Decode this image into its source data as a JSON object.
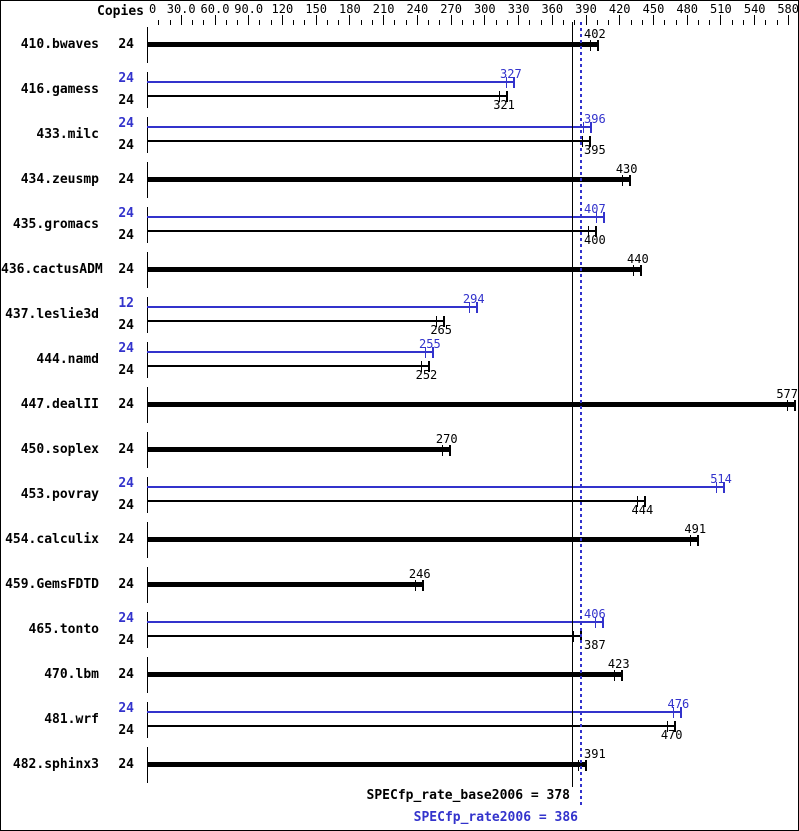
{
  "header": {
    "copies_label": "Copies"
  },
  "footer": {
    "base_label": "SPECfp_rate_base2006 = 378",
    "peak_label": "SPECfp_rate2006 = 386"
  },
  "colors": {
    "peak": "#3333cc",
    "base": "#000000"
  },
  "chart_data": {
    "type": "bar",
    "orientation": "horizontal",
    "title": "SPECfp_rate2006 result bar chart",
    "xlabel": "",
    "ylabel": "Copies",
    "axis": {
      "min": 0,
      "max": 580,
      "minor_step": 10,
      "major_step": 30,
      "tick_labels": [
        "0",
        "30.0",
        "60.0",
        "90.0",
        "120",
        "150",
        "180",
        "210",
        "240",
        "270",
        "300",
        "330",
        "360",
        "390",
        "420",
        "450",
        "480",
        "510",
        "540",
        "580"
      ]
    },
    "reference_lines": [
      {
        "name": "SPECfp_rate_base2006",
        "value": 378,
        "style": "solid",
        "color": "#000000"
      },
      {
        "name": "SPECfp_rate2006",
        "value": 386,
        "style": "dotted",
        "color": "#3333cc"
      }
    ],
    "benchmarks": [
      {
        "name": "410.bwaves",
        "bars": [
          {
            "kind": "base",
            "copies": 24,
            "value": 402,
            "thick": true
          }
        ]
      },
      {
        "name": "416.gamess",
        "bars": [
          {
            "kind": "peak",
            "copies": 24,
            "value": 327
          },
          {
            "kind": "base",
            "copies": 24,
            "value": 321
          }
        ]
      },
      {
        "name": "433.milc",
        "bars": [
          {
            "kind": "peak",
            "copies": 24,
            "value": 396
          },
          {
            "kind": "base",
            "copies": 24,
            "value": 395
          }
        ]
      },
      {
        "name": "434.zeusmp",
        "bars": [
          {
            "kind": "base",
            "copies": 24,
            "value": 430,
            "thick": true
          }
        ]
      },
      {
        "name": "435.gromacs",
        "bars": [
          {
            "kind": "peak",
            "copies": 24,
            "value": 407
          },
          {
            "kind": "base",
            "copies": 24,
            "value": 400
          }
        ]
      },
      {
        "name": "436.cactusADM",
        "bars": [
          {
            "kind": "base",
            "copies": 24,
            "value": 440,
            "thick": true
          }
        ]
      },
      {
        "name": "437.leslie3d",
        "bars": [
          {
            "kind": "peak",
            "copies": 12,
            "value": 294
          },
          {
            "kind": "base",
            "copies": 24,
            "value": 265
          }
        ]
      },
      {
        "name": "444.namd",
        "bars": [
          {
            "kind": "peak",
            "copies": 24,
            "value": 255
          },
          {
            "kind": "base",
            "copies": 24,
            "value": 252
          }
        ]
      },
      {
        "name": "447.dealII",
        "bars": [
          {
            "kind": "base",
            "copies": 24,
            "value": 577,
            "thick": true
          }
        ]
      },
      {
        "name": "450.soplex",
        "bars": [
          {
            "kind": "base",
            "copies": 24,
            "value": 270,
            "thick": true
          }
        ]
      },
      {
        "name": "453.povray",
        "bars": [
          {
            "kind": "peak",
            "copies": 24,
            "value": 514
          },
          {
            "kind": "base",
            "copies": 24,
            "value": 444
          }
        ]
      },
      {
        "name": "454.calculix",
        "bars": [
          {
            "kind": "base",
            "copies": 24,
            "value": 491,
            "thick": true
          }
        ]
      },
      {
        "name": "459.GemsFDTD",
        "bars": [
          {
            "kind": "base",
            "copies": 24,
            "value": 246,
            "thick": true
          }
        ]
      },
      {
        "name": "465.tonto",
        "bars": [
          {
            "kind": "peak",
            "copies": 24,
            "value": 406
          },
          {
            "kind": "base",
            "copies": 24,
            "value": 387
          }
        ]
      },
      {
        "name": "470.lbm",
        "bars": [
          {
            "kind": "base",
            "copies": 24,
            "value": 423,
            "thick": true
          }
        ]
      },
      {
        "name": "481.wrf",
        "bars": [
          {
            "kind": "peak",
            "copies": 24,
            "value": 476
          },
          {
            "kind": "base",
            "copies": 24,
            "value": 470
          }
        ]
      },
      {
        "name": "482.sphinx3",
        "bars": [
          {
            "kind": "base",
            "copies": 24,
            "value": 391,
            "thick": true
          }
        ]
      }
    ]
  }
}
